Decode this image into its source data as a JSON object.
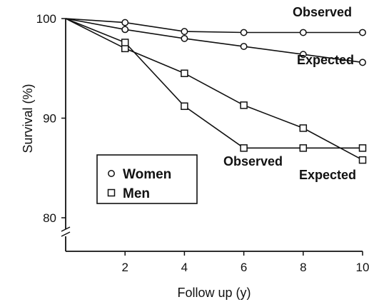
{
  "chart_data": {
    "type": "line",
    "xlabel": "Follow up (y)",
    "ylabel": "Survival (%)",
    "xlim": [
      0,
      10
    ],
    "ylim": [
      78,
      100
    ],
    "axis_break": "y",
    "x_ticks": [
      2,
      4,
      6,
      8,
      10
    ],
    "y_ticks": [
      80,
      90,
      100
    ],
    "grid": false,
    "legend_position": "center-left",
    "legend": [
      {
        "label": "Women",
        "marker": "circle"
      },
      {
        "label": "Men",
        "marker": "square"
      }
    ],
    "series": [
      {
        "group": "Women",
        "marker": "circle",
        "x": [
          0,
          2,
          4,
          6,
          8,
          10
        ],
        "y": [
          100,
          99.6,
          98.7,
          98.6,
          98.6,
          98.6
        ]
      },
      {
        "group": "Women",
        "marker": "circle",
        "x": [
          0,
          2,
          4,
          6,
          8,
          10
        ],
        "y": [
          100,
          98.9,
          98.0,
          97.2,
          96.4,
          95.6
        ]
      },
      {
        "group": "Men",
        "marker": "square",
        "x": [
          0,
          2,
          4,
          6,
          8,
          10
        ],
        "y": [
          100,
          97.0,
          94.5,
          91.3,
          89.0,
          85.8
        ]
      },
      {
        "group": "Men",
        "marker": "square",
        "x": [
          0,
          2,
          4,
          6,
          8,
          10
        ],
        "y": [
          100,
          97.6,
          91.2,
          87.0,
          87.0,
          87.0
        ]
      }
    ],
    "annotations": [
      {
        "text": "Observed",
        "near": "women-observed"
      },
      {
        "text": "Expected",
        "near": "women-expected"
      },
      {
        "text": "Observed",
        "near": "men-observed"
      },
      {
        "text": "Expected",
        "near": "men-expected"
      }
    ]
  }
}
